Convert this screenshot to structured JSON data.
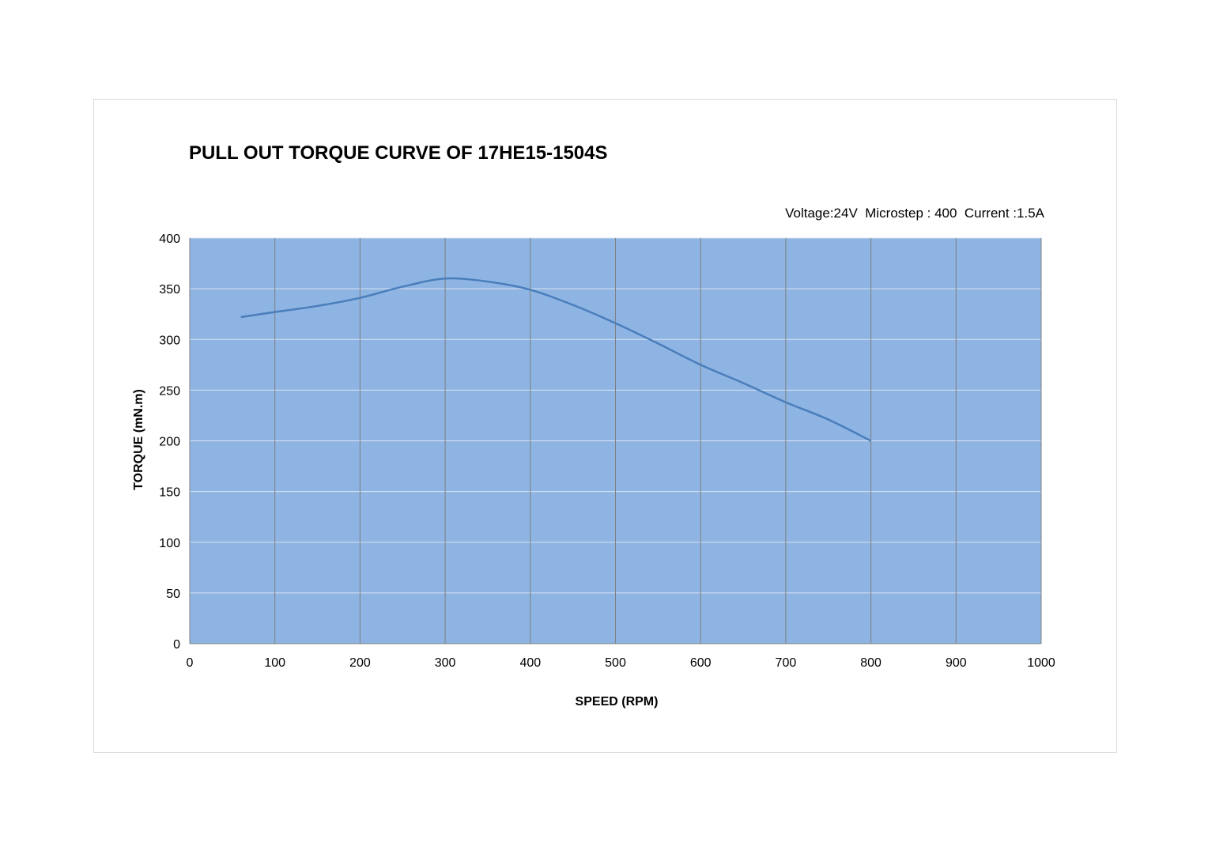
{
  "chart_data": {
    "type": "line",
    "title": "PULL OUT TORQUE CURVE OF 17HE15-1504S",
    "subtitle": "Voltage:24V  Microstep : 400  Current :1.5A",
    "xlabel": "SPEED (RPM)",
    "ylabel": "TORQUE (mN.m)",
    "xlim": [
      0,
      1000
    ],
    "ylim": [
      0,
      400
    ],
    "x_ticks": [
      "0",
      "100",
      "200",
      "300",
      "400",
      "500",
      "600",
      "700",
      "800",
      "900",
      "1000"
    ],
    "y_ticks": [
      "0",
      "50",
      "100",
      "150",
      "200",
      "250",
      "300",
      "350",
      "400"
    ],
    "grid": true,
    "plot_background": "#8eb4e3",
    "gridline_vertical_color": "#7f7f7f",
    "gridline_horizontal_color": "#d9e4f2",
    "series": [
      {
        "color": "#4a7ebb",
        "points": [
          {
            "x": 60,
            "y": 322
          },
          {
            "x": 100,
            "y": 327
          },
          {
            "x": 150,
            "y": 333
          },
          {
            "x": 200,
            "y": 341
          },
          {
            "x": 250,
            "y": 352
          },
          {
            "x": 300,
            "y": 360
          },
          {
            "x": 350,
            "y": 357
          },
          {
            "x": 400,
            "y": 349
          },
          {
            "x": 450,
            "y": 334
          },
          {
            "x": 500,
            "y": 316
          },
          {
            "x": 550,
            "y": 296
          },
          {
            "x": 600,
            "y": 275
          },
          {
            "x": 650,
            "y": 257
          },
          {
            "x": 700,
            "y": 238
          },
          {
            "x": 750,
            "y": 221
          },
          {
            "x": 800,
            "y": 200
          }
        ]
      }
    ]
  }
}
